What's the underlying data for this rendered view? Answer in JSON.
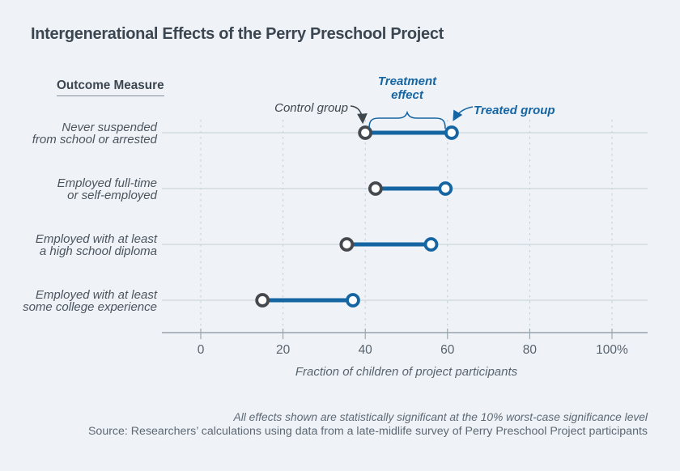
{
  "title": "Intergenerational Effects of the Perry Preschool Project",
  "outcome_header": "Outcome Measure",
  "annotations": {
    "control_label": "Control group",
    "treatment_effect_label": "Treatment effect",
    "treated_label": "Treated group"
  },
  "footnotes": {
    "significance": "All effects shown are statistically significant at the 10% worst-case significance level",
    "source": "Source: Researchers’ calculations using data from a late-midlife survey of Perry Preschool Project participants"
  },
  "colors": {
    "treated_blue": "#1565a3",
    "control_gray": "#45494e",
    "background": "#eff3f8",
    "heading_text": "#3c4651"
  },
  "chart_data": {
    "type": "dumbbell",
    "title": "Intergenerational Effects of the Perry Preschool Project",
    "categories": [
      "Never suspended from school or arrested",
      "Employed full-time or self-employed",
      "Employed with at least a high school diploma",
      "Employed with at least some college experience"
    ],
    "category_lines": [
      [
        "Never suspended",
        "from school or arrested"
      ],
      [
        "Employed full-time",
        "or self-employed"
      ],
      [
        "Employed with at least",
        "a high school diploma"
      ],
      [
        "Employed with at least",
        "some college experience"
      ]
    ],
    "series": [
      {
        "name": "Control group",
        "values": [
          40,
          42.5,
          35.5,
          15
        ]
      },
      {
        "name": "Treated group",
        "values": [
          61,
          59.5,
          56,
          37
        ]
      }
    ],
    "xlabel": "Fraction of children of project participants",
    "xlim": [
      0,
      100
    ],
    "tick_values": [
      0,
      20,
      40,
      60,
      80,
      100
    ],
    "tick_labels": [
      "0",
      "20",
      "40",
      "60",
      "80",
      "100%"
    ],
    "grid": "dashed-vertical",
    "units": "percent of children"
  }
}
